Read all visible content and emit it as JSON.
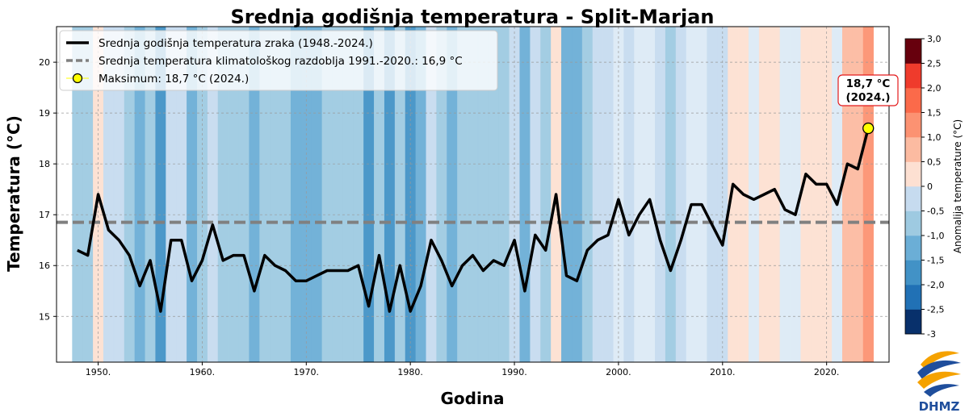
{
  "chart_data": {
    "type": "line",
    "title": "Srednja godišnja temperatura - Split-Marjan",
    "xlabel": "Godina",
    "ylabel": "Temperatura (°C)",
    "xlim": [
      1946,
      2026
    ],
    "ylim": [
      14.1,
      20.7
    ],
    "x_ticks": [
      1950,
      1960,
      1970,
      1980,
      1990,
      2000,
      2010,
      2020
    ],
    "x_tick_labels": [
      "1950.",
      "1960.",
      "1970.",
      "1980.",
      "1990.",
      "2000.",
      "2010.",
      "2020."
    ],
    "y_ticks": [
      15,
      16,
      17,
      18,
      19,
      20
    ],
    "y_tick_labels": [
      "15",
      "16",
      "17",
      "18",
      "19",
      "20"
    ],
    "grid": true,
    "legend_position": "top-left",
    "legend": [
      "Srednja godišnja temperatura zraka (1948.-2024.)",
      "Srednja temperatura klimatološkog razdoblja 1991.-2020.: 16,9 °C",
      "Maksimum: 18,7 °C (2024.)"
    ],
    "series": [
      {
        "name": "Srednja godišnja temperatura zraka (1948.-2024.)",
        "years": [
          1948,
          1949,
          1950,
          1951,
          1952,
          1953,
          1954,
          1955,
          1956,
          1957,
          1958,
          1959,
          1960,
          1961,
          1962,
          1963,
          1964,
          1965,
          1966,
          1967,
          1968,
          1969,
          1970,
          1971,
          1972,
          1973,
          1974,
          1975,
          1976,
          1977,
          1978,
          1979,
          1980,
          1981,
          1982,
          1983,
          1984,
          1985,
          1986,
          1987,
          1988,
          1989,
          1990,
          1991,
          1992,
          1993,
          1994,
          1995,
          1996,
          1997,
          1998,
          1999,
          2000,
          2001,
          2002,
          2003,
          2004,
          2005,
          2006,
          2007,
          2008,
          2009,
          2010,
          2011,
          2012,
          2013,
          2014,
          2015,
          2016,
          2017,
          2018,
          2019,
          2020,
          2021,
          2022,
          2023,
          2024
        ],
        "values": [
          16.3,
          16.2,
          17.4,
          16.7,
          16.5,
          16.2,
          15.6,
          16.1,
          15.1,
          16.5,
          16.5,
          15.7,
          16.1,
          16.8,
          16.1,
          16.2,
          16.2,
          15.5,
          16.2,
          16.0,
          15.9,
          15.7,
          15.7,
          15.8,
          15.9,
          15.9,
          15.9,
          16.0,
          15.2,
          16.2,
          15.1,
          16.0,
          15.1,
          15.6,
          16.5,
          16.1,
          15.6,
          16.0,
          16.2,
          15.9,
          16.1,
          16.0,
          16.5,
          15.5,
          16.6,
          16.3,
          17.4,
          15.8,
          15.7,
          16.3,
          16.5,
          16.6,
          17.3,
          16.6,
          17.0,
          17.3,
          16.5,
          15.9,
          16.5,
          17.2,
          17.2,
          16.8,
          16.4,
          17.6,
          17.4,
          17.3,
          17.4,
          17.5,
          17.1,
          17.0,
          17.8,
          17.6,
          17.6,
          17.2,
          18.0,
          17.9,
          18.7
        ]
      },
      {
        "name": "Srednja temperatura klimatološkog razdoblja 1991.-2020.: 16,9 °C",
        "value": 16.85
      }
    ],
    "maximum": {
      "label": "Maksimum: 18,7 °C (2024.)",
      "year": 2024,
      "value": 18.7,
      "annotation_line1": "18,7 °C",
      "annotation_line2": "(2024.)"
    },
    "colorbar": {
      "label": "Anomalija temperature (°C)",
      "range": [
        -3.0,
        3.0
      ],
      "tick_labels": [
        "3,0",
        "2,5",
        "2,0",
        "1,5",
        "1,0",
        "0,5",
        "0",
        "-0,5",
        "-1,0",
        "-1,5",
        "-2,0",
        "-2,5",
        "-3"
      ],
      "colors": [
        "#08306b",
        "#2171b5",
        "#4292c6",
        "#6baed6",
        "#9ecae1",
        "#c6dbef",
        "#dceaf6",
        "#fde0d2",
        "#fcbba1",
        "#fc9272",
        "#fb6a4a",
        "#ef3b2c",
        "#cb181d",
        "#67000d"
      ]
    },
    "colors": {
      "line": "#000000",
      "mean_line": "#808080",
      "marker_fill": "#ffff00",
      "annotation_border": "#e31a1c"
    }
  },
  "logo": {
    "text": "DHMZ",
    "brand_color": "#1f4e9c",
    "accent_color": "#f5a200"
  }
}
